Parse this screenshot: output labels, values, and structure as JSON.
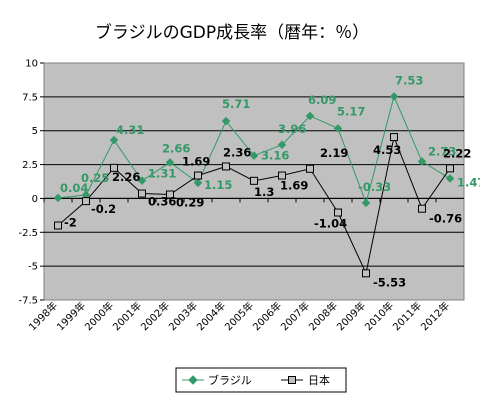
{
  "chart_data": {
    "type": "line",
    "title": "ブラジルのGDP成長率（暦年：％）",
    "xlabel": "",
    "ylabel": "",
    "categories": [
      "1998年",
      "1999年",
      "2000年",
      "2001年",
      "2002年",
      "2003年",
      "2004年",
      "2005年",
      "2006年",
      "2007年",
      "2008年",
      "2009年",
      "2010年",
      "2011年",
      "2012年"
    ],
    "ylim": [
      -7.5,
      10
    ],
    "yticks": [
      "10",
      "7.5",
      "5",
      "2.5",
      "0",
      "-2.5",
      "-5",
      "-7.5"
    ],
    "ytick_values": [
      10,
      7.5,
      5,
      2.5,
      0,
      -2.5,
      -5,
      -7.5
    ],
    "grid": true,
    "legend_position": "bottom",
    "plot_background": "#c0c0c0",
    "series": [
      {
        "name": "ブラジル",
        "color": "#339966",
        "marker": "diamond",
        "values": [
          0.04,
          0.25,
          4.31,
          1.31,
          2.66,
          1.15,
          5.71,
          3.16,
          3.96,
          6.09,
          5.17,
          -0.33,
          7.53,
          2.73,
          1.47
        ],
        "labels": [
          "0.04",
          "0.25",
          "4.31",
          "1.31",
          "2.66",
          "1.15",
          "5.71",
          "3.16",
          "3.96",
          "6.09",
          "5.17",
          "-0.33",
          "7.53",
          "2.73",
          "1.47"
        ]
      },
      {
        "name": "日本",
        "color": "#000000",
        "marker": "square",
        "values": [
          -2,
          -0.2,
          2.26,
          0.36,
          0.29,
          1.69,
          2.36,
          1.3,
          1.69,
          2.19,
          -1.04,
          -5.53,
          4.53,
          -0.76,
          2.22
        ],
        "labels": [
          "-2",
          "-0.2",
          "2.26",
          "0.36",
          "0.29",
          "1.69",
          "2.36",
          "1.3",
          "1.69",
          "2.19",
          "-1.04",
          "-5.53",
          "4.53",
          "-0.76",
          "2.22"
        ]
      }
    ]
  }
}
